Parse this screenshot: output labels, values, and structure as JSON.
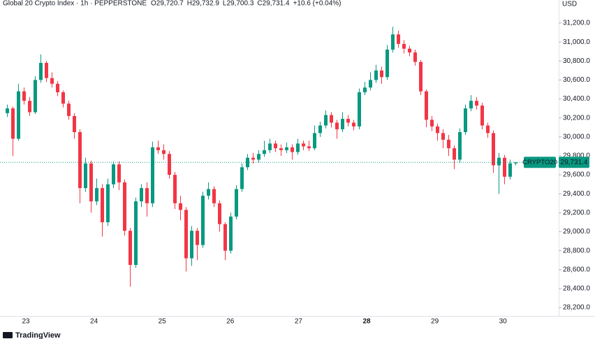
{
  "chart_data": {
    "type": "candlestick",
    "title": "Global 20 Crypto Index · 1h · PEPPERSTONE",
    "legend_values": [
      {
        "key": "O",
        "label": "29,720.7"
      },
      {
        "key": "H",
        "label": "29,732.9"
      },
      {
        "key": "L",
        "label": "29,700.3"
      },
      {
        "key": "C",
        "label": "29,731.4"
      }
    ],
    "change_label": "+10.6 (+0.04%)",
    "y_unit": "USD",
    "up_color": "#089981",
    "down_color": "#f23645",
    "categories": [
      "23",
      "24",
      "25",
      "26",
      "27",
      "28",
      "29",
      "30"
    ],
    "bold_category": "28",
    "ylim": [
      28127,
      31443
    ],
    "yticks": [
      {
        "value": 28200,
        "label": "28,200.0"
      },
      {
        "value": 28400,
        "label": "28,400.0"
      },
      {
        "value": 28600,
        "label": "28,600.0"
      },
      {
        "value": 28800,
        "label": "28,800.0"
      },
      {
        "value": 29000,
        "label": "29,000.0"
      },
      {
        "value": 29200,
        "label": "29,200.0"
      },
      {
        "value": 29400,
        "label": "29,400.0"
      },
      {
        "value": 29600,
        "label": "29,600.0"
      },
      {
        "value": 29800,
        "label": "29,800.0"
      },
      {
        "value": 30000,
        "label": "30,000.0"
      },
      {
        "value": 30200,
        "label": "30,200.0"
      },
      {
        "value": 30400,
        "label": "30,400.0"
      },
      {
        "value": 30600,
        "label": "30,600.0"
      },
      {
        "value": 30800,
        "label": "30,800.0"
      },
      {
        "value": 31000,
        "label": "31,000.0"
      },
      {
        "value": 31200,
        "label": "31,200.0"
      }
    ],
    "grid": false,
    "last_price": {
      "value": 29731.4,
      "label": "29,731.4"
    },
    "symbol_tag": "CRYPTO20",
    "brand": "TradingView",
    "ohlc": [
      [
        30250,
        30340,
        30210,
        30300
      ],
      [
        30300,
        30320,
        29800,
        29980
      ],
      [
        29980,
        30560,
        29960,
        30480
      ],
      [
        30480,
        30520,
        30340,
        30380
      ],
      [
        30380,
        30420,
        30220,
        30260
      ],
      [
        30260,
        30640,
        30240,
        30600
      ],
      [
        30600,
        30870,
        30570,
        30780
      ],
      [
        30780,
        30800,
        30580,
        30620
      ],
      [
        30620,
        30680,
        30520,
        30560
      ],
      [
        30560,
        30590,
        30430,
        30470
      ],
      [
        30470,
        30490,
        30310,
        30350
      ],
      [
        30350,
        30380,
        30180,
        30220
      ],
      [
        30220,
        30250,
        29980,
        30050
      ],
      [
        30050,
        30080,
        29300,
        29460
      ],
      [
        29460,
        29780,
        29420,
        29720
      ],
      [
        29720,
        29750,
        29200,
        29320
      ],
      [
        29320,
        29560,
        29280,
        29460
      ],
      [
        29460,
        29500,
        28950,
        29100
      ],
      [
        29100,
        29560,
        29060,
        29500
      ],
      [
        29500,
        29740,
        29460,
        29710
      ],
      [
        29710,
        29740,
        29440,
        29520
      ],
      [
        29520,
        29550,
        28960,
        29010
      ],
      [
        29010,
        29040,
        28420,
        28650
      ],
      [
        28650,
        29360,
        28620,
        29320
      ],
      [
        29320,
        29500,
        29260,
        29460
      ],
      [
        29460,
        29520,
        29160,
        29300
      ],
      [
        29300,
        29950,
        29260,
        29890
      ],
      [
        29890,
        29960,
        29820,
        29860
      ],
      [
        29860,
        29920,
        29760,
        29820
      ],
      [
        29820,
        29850,
        29560,
        29600
      ],
      [
        29600,
        29630,
        29240,
        29300
      ],
      [
        29300,
        29380,
        29120,
        29230
      ],
      [
        29230,
        29260,
        28580,
        28720
      ],
      [
        28720,
        29060,
        28640,
        29010
      ],
      [
        29010,
        29040,
        28700,
        28860
      ],
      [
        28860,
        29420,
        28830,
        29380
      ],
      [
        29380,
        29520,
        29340,
        29450
      ],
      [
        29450,
        29480,
        29260,
        29300
      ],
      [
        29300,
        29330,
        29000,
        29080
      ],
      [
        29080,
        29100,
        28700,
        28800
      ],
      [
        28800,
        29200,
        28770,
        29160
      ],
      [
        29160,
        29490,
        29130,
        29450
      ],
      [
        29450,
        29720,
        29420,
        29680
      ],
      [
        29680,
        29820,
        29650,
        29780
      ],
      [
        29780,
        29830,
        29720,
        29760
      ],
      [
        29760,
        29860,
        29730,
        29820
      ],
      [
        29820,
        29960,
        29790,
        29860
      ],
      [
        29860,
        29980,
        29830,
        29930
      ],
      [
        29930,
        29960,
        29840,
        29880
      ],
      [
        29880,
        29920,
        29800,
        29860
      ],
      [
        29860,
        29940,
        29830,
        29890
      ],
      [
        29890,
        29920,
        29760,
        29840
      ],
      [
        29840,
        29980,
        29810,
        29930
      ],
      [
        29930,
        29960,
        29860,
        29900
      ],
      [
        29900,
        29960,
        29850,
        29880
      ],
      [
        29880,
        30120,
        29860,
        30040
      ],
      [
        30040,
        30160,
        30000,
        30120
      ],
      [
        30120,
        30280,
        30090,
        30230
      ],
      [
        30230,
        30260,
        30100,
        30150
      ],
      [
        30150,
        30180,
        29980,
        30080
      ],
      [
        30080,
        30260,
        30050,
        30190
      ],
      [
        30190,
        30230,
        30110,
        30150
      ],
      [
        30150,
        30180,
        30070,
        30110
      ],
      [
        30110,
        30510,
        30080,
        30470
      ],
      [
        30470,
        30580,
        30440,
        30520
      ],
      [
        30520,
        30680,
        30490,
        30600
      ],
      [
        30600,
        30760,
        30570,
        30700
      ],
      [
        30700,
        30740,
        30560,
        30630
      ],
      [
        30630,
        30970,
        30600,
        30920
      ],
      [
        30920,
        31160,
        30890,
        31080
      ],
      [
        31080,
        31120,
        30940,
        30980
      ],
      [
        30980,
        31020,
        30880,
        30930
      ],
      [
        30930,
        30960,
        30850,
        30890
      ],
      [
        30890,
        30920,
        30750,
        30790
      ],
      [
        30790,
        30810,
        30440,
        30480
      ],
      [
        30480,
        30500,
        30100,
        30180
      ],
      [
        30180,
        30220,
        30060,
        30110
      ],
      [
        30110,
        30140,
        29960,
        30040
      ],
      [
        30040,
        30080,
        29880,
        29970
      ],
      [
        29970,
        30020,
        29800,
        29880
      ],
      [
        29880,
        29910,
        29660,
        29760
      ],
      [
        29760,
        30090,
        29730,
        30050
      ],
      [
        30050,
        30340,
        30020,
        30300
      ],
      [
        30300,
        30440,
        30270,
        30380
      ],
      [
        30380,
        30420,
        30290,
        30330
      ],
      [
        30330,
        30360,
        30080,
        30120
      ],
      [
        30120,
        30150,
        29990,
        30040
      ],
      [
        30040,
        30070,
        29620,
        29700
      ],
      [
        29700,
        29830,
        29400,
        29780
      ],
      [
        29780,
        29810,
        29500,
        29580
      ],
      [
        29580,
        29760,
        29550,
        29720.7
      ],
      [
        29720.7,
        29732.9,
        29700.3,
        29731.4
      ]
    ]
  }
}
